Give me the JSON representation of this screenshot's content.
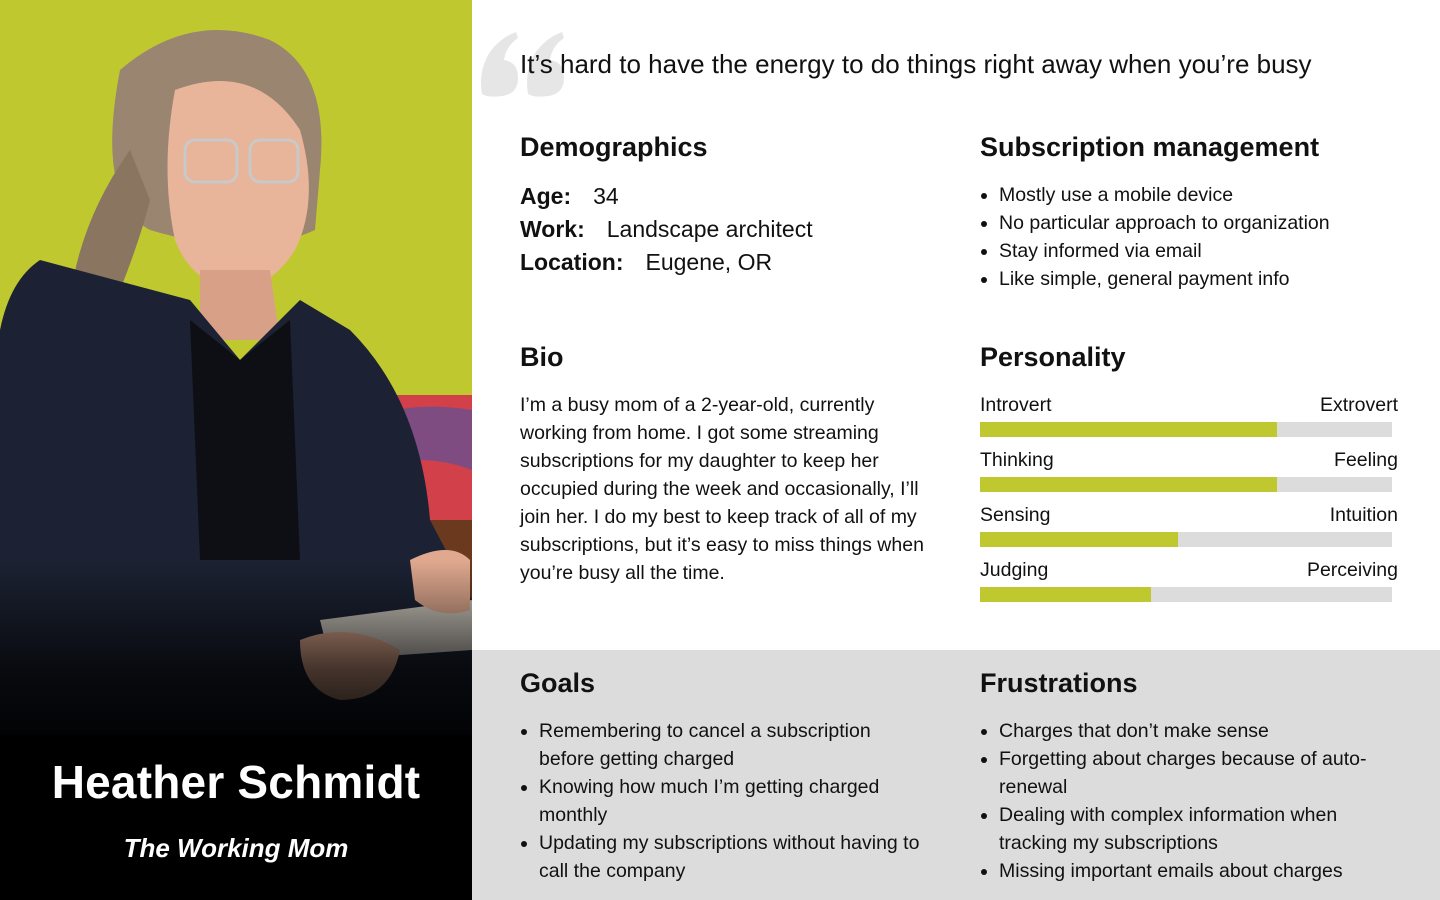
{
  "persona": {
    "name": "Heather Schmidt",
    "role": "The Working Mom",
    "quote": "It’s hard to have the energy to do things right away when you’re busy"
  },
  "demographics": {
    "title": "Demographics",
    "items": [
      {
        "label": "Age:",
        "value": "34"
      },
      {
        "label": "Work:",
        "value": "Landscape architect"
      },
      {
        "label": "Location:",
        "value": "Eugene, OR"
      }
    ]
  },
  "subscription": {
    "title": "Subscription management",
    "items": [
      "Mostly use a mobile device",
      "No particular approach to organization",
      "Stay informed via email",
      "Like simple, general payment info"
    ]
  },
  "bio": {
    "title": "Bio",
    "text": "I’m a busy mom of a 2-year-old, currently working from home. I got some streaming subscriptions for my daughter to keep her occupied during the week and occasionally, I’ll join her. I do my best to keep track of all of my subscriptions, but it’s easy to miss things when you’re busy all the time."
  },
  "personality": {
    "title": "Personality",
    "traits": [
      {
        "left": "Introvert",
        "right": "Extrovert",
        "level": 0.72
      },
      {
        "left": "Thinking",
        "right": "Feeling",
        "level": 0.72
      },
      {
        "left": "Sensing",
        "right": "Intuition",
        "level": 0.48
      },
      {
        "left": "Judging",
        "right": "Perceiving",
        "level": 0.415
      }
    ]
  },
  "goals": {
    "title": "Goals",
    "items": [
      "Remembering to cancel a subscription before getting charged",
      "Knowing how much I’m getting charged monthly",
      "Updating my subscriptions without having to call the company"
    ]
  },
  "frustrations": {
    "title": "Frustrations",
    "items": [
      "Charges that don’t make sense",
      "Forgetting about charges because of auto-renewal",
      "Dealing with complex information when tracking my subscriptions",
      "Missing important emails about charges"
    ]
  },
  "colors": {
    "accent": "#bfc92f",
    "track": "#dcdcdc",
    "name_block": "#000000",
    "quote_mark": "#e6e6e6"
  }
}
